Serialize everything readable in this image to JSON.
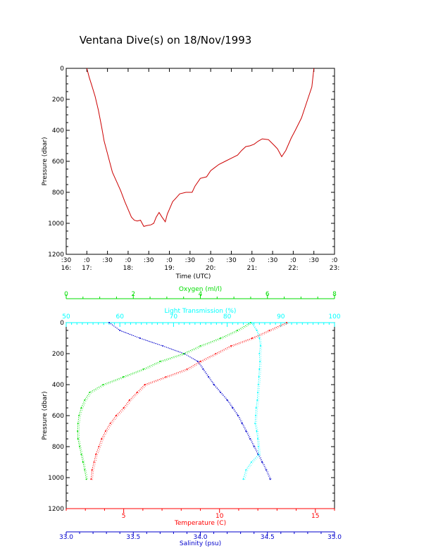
{
  "title": "Ventana Dive(s) on 18/Nov/1993",
  "colors": {
    "axis": "#000000",
    "trace": "#cc0000",
    "temperature": "#ff0000",
    "salinity": "#0000cc",
    "oxygen": "#00dd00",
    "transmission": "#00ffff"
  },
  "chart_data": [
    {
      "type": "line",
      "title": "Ventana Dive(s) on 18/Nov/1993",
      "xlabel": "Time (UTC)",
      "ylabel": "Pressure (dbar)",
      "x_unit": "hours UTC",
      "xlim": [
        16.5,
        23.0
      ],
      "ylim": [
        1200,
        0
      ],
      "y_ticks": [
        "0",
        "200",
        "400",
        "600",
        "800",
        "1000",
        "1200"
      ],
      "x_ticks": [
        {
          "x": 16.5,
          "top": ":30",
          "bottom": "16:"
        },
        {
          "x": 17.0,
          "top": ":0",
          "bottom": "17:"
        },
        {
          "x": 17.5,
          "top": ":30",
          "bottom": ""
        },
        {
          "x": 18.0,
          "top": ":0",
          "bottom": "18:"
        },
        {
          "x": 18.5,
          "top": ":30",
          "bottom": ""
        },
        {
          "x": 19.0,
          "top": ":0",
          "bottom": "19:"
        },
        {
          "x": 19.5,
          "top": ":30",
          "bottom": ""
        },
        {
          "x": 20.0,
          "top": ":0",
          "bottom": "20:"
        },
        {
          "x": 20.5,
          "top": ":30",
          "bottom": ""
        },
        {
          "x": 21.0,
          "top": ":0",
          "bottom": "21:"
        },
        {
          "x": 21.5,
          "top": ":30",
          "bottom": ""
        },
        {
          "x": 22.0,
          "top": ":0",
          "bottom": "22:"
        },
        {
          "x": 22.5,
          "top": ":30",
          "bottom": ""
        },
        {
          "x": 23.0,
          "top": ":0",
          "bottom": "23:"
        }
      ],
      "series": [
        {
          "x": [
            17.0,
            17.06,
            17.12,
            17.2,
            17.28,
            17.36,
            17.42,
            17.5,
            17.55,
            17.62,
            17.72,
            17.82,
            17.92,
            18.0,
            18.08,
            18.15,
            18.22,
            18.3,
            18.38,
            18.45,
            18.55,
            18.62,
            18.68,
            18.75,
            18.82,
            18.9,
            18.95,
            19.0,
            19.08,
            19.15,
            19.25,
            19.4,
            19.55,
            19.62,
            19.75,
            19.9,
            20.0,
            20.1,
            20.2,
            20.35,
            20.5,
            20.65,
            20.75,
            20.85,
            20.95,
            21.05,
            21.15,
            21.25,
            21.4,
            21.55,
            21.62,
            21.72,
            21.82,
            21.95,
            22.05,
            22.2,
            22.35,
            22.45,
            22.5
          ],
          "y": [
            0,
            60,
            110,
            180,
            270,
            380,
            470,
            550,
            600,
            670,
            730,
            790,
            860,
            910,
            960,
            980,
            985,
            980,
            1020,
            1015,
            1010,
            1000,
            960,
            930,
            960,
            990,
            940,
            910,
            860,
            840,
            810,
            800,
            800,
            760,
            710,
            700,
            660,
            640,
            620,
            600,
            580,
            560,
            530,
            505,
            500,
            490,
            470,
            455,
            460,
            500,
            520,
            570,
            530,
            450,
            400,
            320,
            200,
            120,
            0
          ]
        }
      ]
    },
    {
      "type": "scatter",
      "ylabel": "Pressure (dbar)",
      "ylim": [
        1200,
        0
      ],
      "y_ticks": [
        "0",
        "200",
        "400",
        "600",
        "800",
        "1000",
        "1200"
      ],
      "axes": {
        "oxygen": {
          "label": "Oxygen (ml/l)",
          "lim": [
            0,
            8
          ],
          "ticks": [
            "0",
            "2",
            "4",
            "6",
            "8"
          ]
        },
        "transmission": {
          "label": "Light Transmission (%)",
          "lim": [
            50,
            100
          ],
          "ticks": [
            "50",
            "60",
            "70",
            "80",
            "90",
            "100"
          ]
        },
        "temperature": {
          "label": "Temperature (C)",
          "lim": [
            2,
            16
          ],
          "ticks": [
            "5",
            "10",
            "15"
          ]
        },
        "salinity": {
          "label": "Salinity (psu)",
          "lim": [
            33.0,
            35.0
          ],
          "ticks": [
            "33.0",
            "33.5",
            "34.0",
            "34.5",
            "35.0"
          ]
        }
      },
      "series": [
        {
          "key": "temperature",
          "y": [
            0,
            50,
            100,
            150,
            200,
            250,
            300,
            350,
            400,
            450,
            500,
            550,
            600,
            650,
            700,
            750,
            800,
            850,
            900,
            950,
            1010
          ],
          "x": [
            13.5,
            12.6,
            11.7,
            10.6,
            9.8,
            9.0,
            8.3,
            7.2,
            6.1,
            5.7,
            5.3,
            5.0,
            4.6,
            4.3,
            4.05,
            3.85,
            3.7,
            3.55,
            3.45,
            3.35,
            3.3
          ]
        },
        {
          "key": "salinity",
          "y": [
            0,
            50,
            100,
            150,
            200,
            250,
            300,
            350,
            400,
            450,
            500,
            550,
            600,
            650,
            700,
            750,
            800,
            850,
            900,
            950,
            1010
          ],
          "x": [
            33.32,
            33.4,
            33.55,
            33.72,
            33.88,
            33.98,
            34.02,
            34.06,
            34.1,
            34.15,
            34.2,
            34.24,
            34.28,
            34.31,
            34.34,
            34.37,
            34.4,
            34.43,
            34.46,
            34.49,
            34.52
          ]
        },
        {
          "key": "oxygen",
          "y": [
            0,
            50,
            100,
            150,
            200,
            250,
            300,
            350,
            400,
            450,
            500,
            550,
            600,
            650,
            700,
            750,
            800,
            850,
            900,
            950,
            1010
          ],
          "x": [
            5.5,
            5.1,
            4.6,
            4.0,
            3.5,
            2.8,
            2.3,
            1.7,
            1.1,
            0.7,
            0.55,
            0.45,
            0.38,
            0.35,
            0.34,
            0.35,
            0.4,
            0.45,
            0.5,
            0.55,
            0.6
          ]
        },
        {
          "key": "transmission",
          "y": [
            0,
            50,
            100,
            150,
            200,
            250,
            300,
            350,
            400,
            450,
            500,
            550,
            600,
            650,
            700,
            750,
            800,
            850,
            900,
            950,
            1010
          ],
          "x": [
            84.5,
            85.5,
            86.0,
            86.2,
            86.0,
            86.1,
            86.0,
            85.9,
            85.8,
            85.7,
            85.6,
            85.4,
            85.3,
            85.2,
            85.5,
            85.7,
            85.8,
            85.9,
            84.5,
            83.5,
            83.0
          ]
        }
      ]
    }
  ]
}
